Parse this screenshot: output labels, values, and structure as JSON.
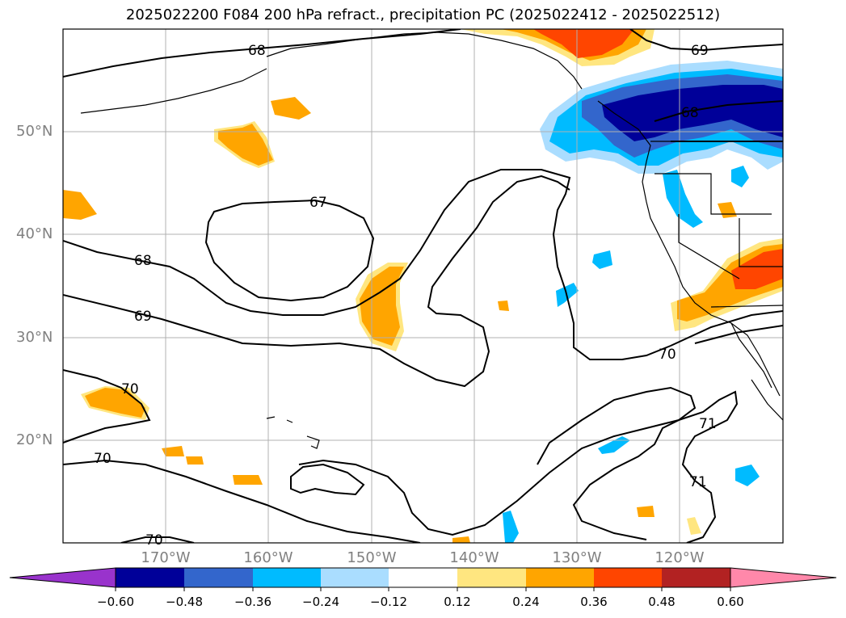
{
  "title": "2025022200 F084 200 hPa refract., precipitation PC (2025022412 - 2025022512)",
  "lat_labels": [
    "50°N",
    "40°N",
    "30°N",
    "20°N"
  ],
  "lon_labels": [
    "170°W",
    "160°W",
    "150°W",
    "140°W",
    "130°W",
    "120°W"
  ],
  "colorbar": {
    "ticks": [
      "−0.60",
      "−0.48",
      "−0.36",
      "−0.24",
      "−0.12",
      "0.12",
      "0.24",
      "0.36",
      "0.48",
      "0.60"
    ],
    "colors": [
      "#9933cc",
      "#000099",
      "#3366cc",
      "#00bbff",
      "#aaddff",
      "#ffffff",
      "#ffe680",
      "#ffa500",
      "#ff4500",
      "#b22222",
      "#ff88aa"
    ]
  },
  "contour_labels": [
    "68",
    "69",
    "67",
    "68",
    "69",
    "68",
    "70",
    "70",
    "70",
    "71",
    "71",
    "70"
  ],
  "colors": {
    "contour": "#000000",
    "grid": "#b0b0b0",
    "frame": "#000000"
  }
}
